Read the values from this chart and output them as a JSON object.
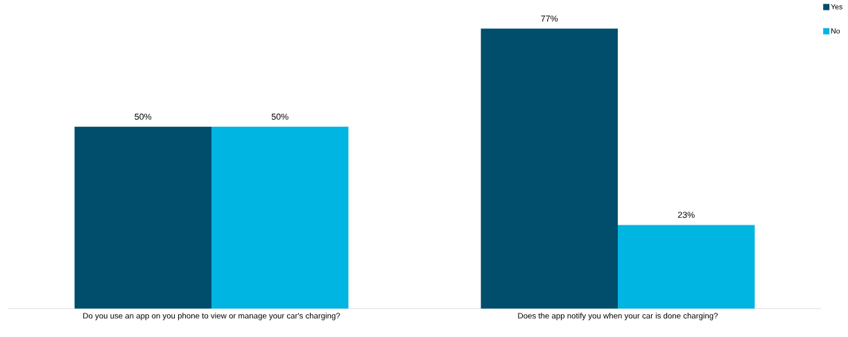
{
  "chart_data": {
    "type": "bar",
    "categories": [
      "Do you use an app on you phone to view or manage your car's charging?",
      "Does the app notify you when your car is done charging?"
    ],
    "series": [
      {
        "name": "Yes",
        "color": "#004e6c",
        "values": [
          50,
          77
        ],
        "value_labels": [
          "50%",
          "77%"
        ]
      },
      {
        "name": "No",
        "color": "#00b5e2",
        "values": [
          50,
          23
        ],
        "value_labels": [
          "50%",
          "23%"
        ]
      }
    ],
    "legend": "top right"
  }
}
